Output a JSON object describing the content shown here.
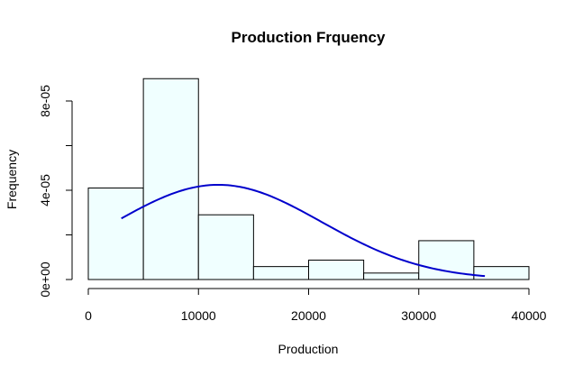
{
  "chart_data": {
    "type": "bar",
    "subtype": "histogram-with-normal-curve",
    "title": "Production Frquency",
    "xlabel": "Production",
    "ylabel": "Frequency",
    "xlim": [
      0,
      40000
    ],
    "ylim": [
      0,
      8e-05
    ],
    "x_ticks": [
      0,
      10000,
      20000,
      30000,
      40000
    ],
    "x_tick_labels": [
      "0",
      "10000",
      "20000",
      "30000",
      "40000"
    ],
    "y_ticks": [
      0,
      4e-05,
      8e-05
    ],
    "y_tick_labels": [
      "0e+00",
      "4e-05",
      "8e-05"
    ],
    "bins": [
      {
        "from": 0,
        "to": 5000,
        "density": 4.1e-05
      },
      {
        "from": 5000,
        "to": 10000,
        "density": 9e-05
      },
      {
        "from": 10000,
        "to": 15000,
        "density": 2.9e-05
      },
      {
        "from": 15000,
        "to": 20000,
        "density": 5.8e-06
      },
      {
        "from": 20000,
        "to": 25000,
        "density": 8.7e-06
      },
      {
        "from": 25000,
        "to": 30000,
        "density": 2.9e-06
      },
      {
        "from": 30000,
        "to": 35000,
        "density": 1.74e-05
      },
      {
        "from": 35000,
        "to": 40000,
        "density": 5.8e-06
      }
    ],
    "curve": {
      "type": "normal-density",
      "mean": 11800,
      "sd": 9400,
      "x_range": [
        3000,
        36000
      ],
      "color": "#0000cc"
    },
    "bar_fill": "#f0ffff",
    "bar_stroke": "#000000",
    "grid": false,
    "legend": "none"
  }
}
